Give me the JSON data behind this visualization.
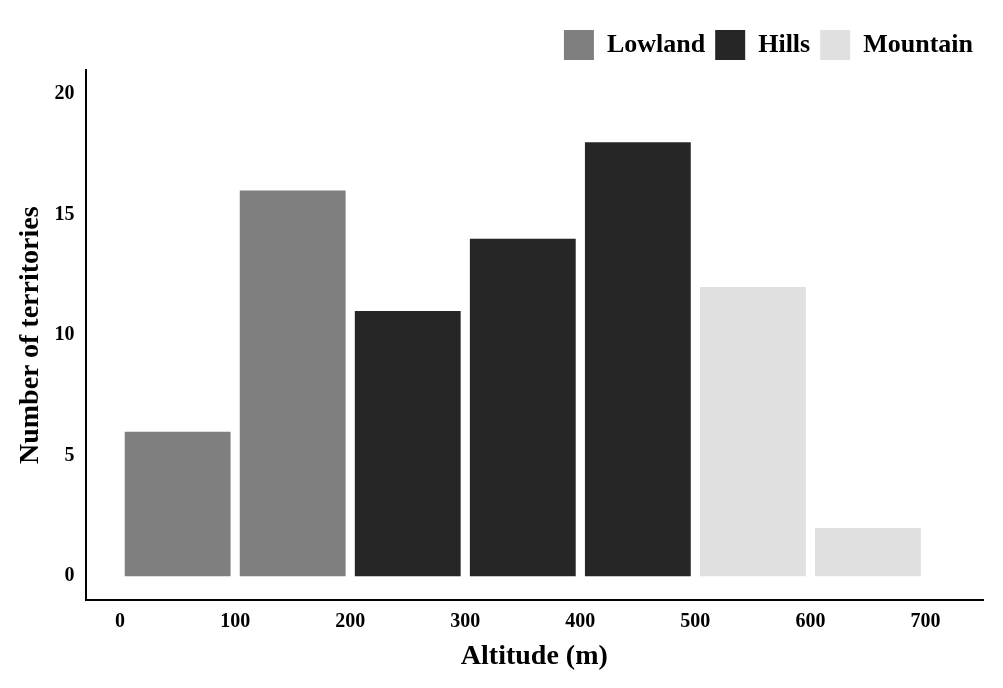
{
  "chart_data": {
    "type": "histogram",
    "xlabel": "Altitude (m)",
    "ylabel": "Number of territories",
    "bins": [
      0,
      100,
      200,
      300,
      400,
      500,
      600,
      700
    ],
    "series": [
      {
        "name": "Lowland",
        "color": "#7f7f7f",
        "values": [
          6,
          16,
          null,
          null,
          null,
          null,
          null
        ]
      },
      {
        "name": "Hills",
        "color": "#262626",
        "values": [
          null,
          null,
          11,
          14,
          18,
          null,
          null
        ]
      },
      {
        "name": "Mountain",
        "color": "#e0e0e0",
        "values": [
          null,
          null,
          null,
          null,
          null,
          12,
          2
        ]
      }
    ],
    "xlim": [
      -30,
      750
    ],
    "xticks": [
      0,
      100,
      200,
      300,
      400,
      500,
      600,
      700
    ],
    "ylim": [
      -1,
      21
    ],
    "yticks": [
      0,
      5,
      10,
      15,
      20
    ],
    "grid": false,
    "legend": "top right"
  }
}
